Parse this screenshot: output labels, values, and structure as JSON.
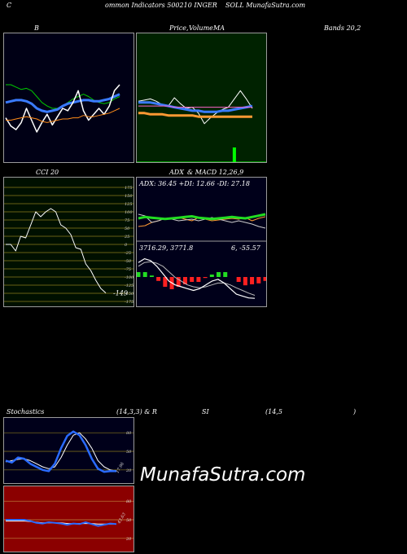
{
  "header": {
    "c1": "C",
    "c2": "ommon  Indicators 500210  INGER",
    "c3": "SOLL  MunafaSutra.com"
  },
  "titles": {
    "bb": "B",
    "pv1": "Price,",
    "pv2": "Volume",
    "pv3": "MA",
    "bands": "Bands 20,2",
    "cci": "CCI 20",
    "adx1": "ADX",
    "adx2": "& MACD 12,26,9",
    "st1": "Stochastics",
    "st2": "(14,3,3) & R",
    "st3": "SI",
    "st4": "(14,5",
    "st5": ")"
  },
  "colors": {
    "ma_panel_bg": "#002200",
    "rsi_panel_bg": "#8b0000",
    "bb_bg": "#000015",
    "cci_bg": "#001000",
    "adx_bg": "#00001a",
    "stoch_bg": "#00001a"
  },
  "watermark": "MunafaSutra.com",
  "chart_data": [
    {
      "type": "line",
      "id": "bollinger",
      "series": [
        {
          "color": "#00cc00",
          "values": [
            60,
            60,
            58,
            56,
            57,
            55,
            50,
            45,
            42,
            40,
            40,
            42,
            45,
            48,
            50,
            52,
            50,
            47,
            45,
            44,
            45,
            48,
            50
          ]
        },
        {
          "color": "#3a7bff",
          "values": [
            45,
            46,
            47,
            47,
            46,
            44,
            40,
            38,
            37,
            38,
            39,
            42,
            44,
            45,
            46,
            47,
            47,
            46,
            46,
            47,
            48,
            50,
            52
          ]
        },
        {
          "color": "#ffffff",
          "values": [
            32,
            25,
            22,
            28,
            40,
            30,
            20,
            28,
            35,
            26,
            33,
            40,
            38,
            45,
            55,
            38,
            30,
            35,
            40,
            35,
            42,
            55,
            60
          ]
        },
        {
          "color": "#ff8c1a",
          "values": [
            30,
            30,
            31,
            32,
            33,
            32,
            31,
            29,
            28,
            29,
            30,
            31,
            31,
            32,
            32,
            34,
            33,
            33,
            34,
            35,
            36,
            38,
            40
          ]
        }
      ]
    },
    {
      "type": "line",
      "id": "price-ma",
      "series": [
        {
          "color": "#ffffff",
          "values": [
            46,
            47,
            48,
            46,
            43,
            42,
            49,
            44,
            40,
            41,
            36,
            27,
            32,
            36,
            39,
            41,
            48,
            55,
            48,
            40
          ]
        },
        {
          "color": "#3a7bff",
          "values": [
            45,
            45,
            45,
            44,
            43,
            42,
            41,
            40,
            39,
            38,
            38,
            37,
            37,
            37,
            38,
            38,
            39,
            40,
            41,
            42
          ]
        },
        {
          "color": "#ff9933",
          "values": [
            36,
            36,
            35,
            35,
            35,
            34,
            34,
            34,
            34,
            34,
            33,
            33,
            33,
            33,
            33,
            33,
            33,
            33,
            33,
            33
          ]
        },
        {
          "color": "#ff66cc",
          "values": [
            42,
            42,
            42,
            42,
            42,
            42,
            41,
            41,
            41,
            41,
            41,
            41,
            41,
            41,
            41,
            41,
            41,
            41,
            41,
            41
          ]
        }
      ],
      "volume": [
        0,
        0,
        0,
        0,
        0,
        0,
        0,
        0,
        0,
        0,
        0,
        0,
        0,
        0,
        0,
        0,
        18,
        0,
        0,
        0
      ]
    },
    {
      "type": "line",
      "id": "cci",
      "ylim": [
        -175,
        175
      ],
      "ticks": [
        175,
        150,
        125,
        100,
        75,
        50,
        25,
        0,
        -25,
        -50,
        -75,
        -100,
        -125,
        -150,
        -175
      ],
      "last_label": "-149",
      "values": [
        0,
        0,
        -20,
        25,
        20,
        60,
        100,
        85,
        100,
        110,
        100,
        60,
        50,
        30,
        -10,
        -15,
        -60,
        -80,
        -110,
        -135,
        -149
      ]
    },
    {
      "type": "line",
      "id": "adx-macd",
      "adx_label": "ADX: 36.45  +DI: 12.66  -DI: 27.18",
      "macd_label": "3716.29,  3771.8",
      "macd_label2": "6,  -55.57",
      "adx": {
        "adx": [
          30,
          32,
          31,
          30,
          29,
          30,
          31,
          32,
          33,
          31,
          30,
          29,
          30,
          31,
          32,
          31,
          30,
          32,
          34,
          36
        ],
        "plus_di": [
          30,
          28,
          20,
          22,
          25,
          24,
          22,
          23,
          24,
          22,
          24,
          26,
          24,
          22,
          20,
          22,
          20,
          18,
          15,
          13
        ],
        "minus_di": [
          15,
          16,
          20,
          22,
          25,
          24,
          26,
          24,
          22,
          26,
          24,
          22,
          23,
          24,
          25,
          24,
          26,
          22,
          25,
          27
        ]
      },
      "macd": {
        "macd": [
          40,
          50,
          45,
          30,
          10,
          -10,
          -20,
          -25,
          -30,
          -35,
          -30,
          -20,
          -10,
          -5,
          -15,
          -30,
          -45,
          -50,
          -55,
          -56
        ],
        "signal": [
          30,
          40,
          42,
          38,
          30,
          15,
          0,
          -10,
          -20,
          -25,
          -28,
          -25,
          -20,
          -15,
          -15,
          -20,
          -28,
          -35,
          -42,
          -48
        ],
        "hist": [
          10,
          10,
          3,
          -8,
          -20,
          -25,
          -20,
          -15,
          -10,
          -10,
          -2,
          5,
          10,
          10,
          0,
          -10,
          -17,
          -15,
          -13,
          -8
        ]
      }
    },
    {
      "type": "line",
      "id": "stochastics",
      "ticks": [
        80,
        50,
        20
      ],
      "last_label": "17.96",
      "k": [
        35,
        32,
        40,
        38,
        30,
        25,
        20,
        18,
        30,
        55,
        75,
        82,
        76,
        60,
        38,
        22,
        17,
        18,
        18
      ],
      "d": [
        33,
        35,
        37,
        38,
        35,
        30,
        25,
        22,
        25,
        40,
        60,
        76,
        80,
        70,
        55,
        35,
        25,
        20,
        18
      ]
    },
    {
      "type": "line",
      "id": "rsi",
      "ticks": [
        80,
        50,
        20
      ],
      "last_label": "43.63",
      "rsi": [
        50,
        50,
        50,
        50,
        48,
        45,
        44,
        46,
        45,
        44,
        42,
        44,
        43,
        46,
        43,
        40,
        42,
        44,
        43
      ],
      "avg": [
        48,
        48,
        48,
        48,
        47,
        46,
        45,
        45,
        45,
        45,
        44,
        44,
        44,
        44,
        44,
        43,
        43,
        43,
        43
      ]
    }
  ]
}
